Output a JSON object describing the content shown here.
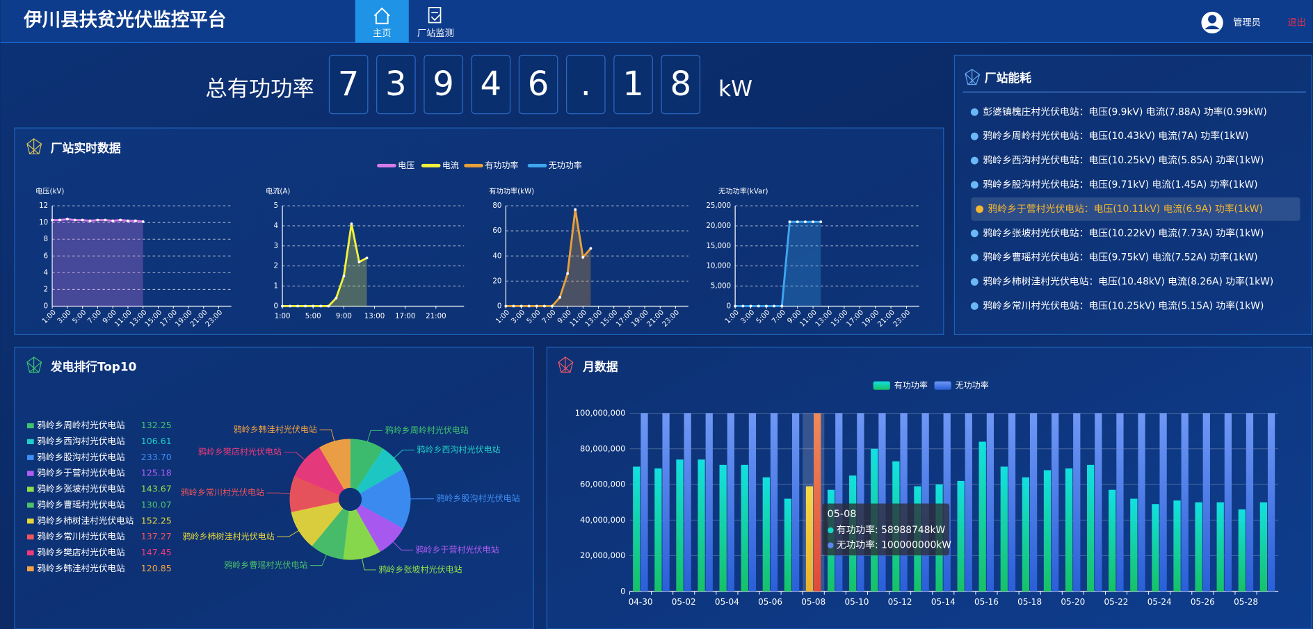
{
  "header": {
    "title": "伊川县扶贫光伏监控平台",
    "nav": [
      "主页",
      "厂站监测"
    ],
    "user": "管理员",
    "logout": "退出"
  },
  "total_power": {
    "label": "总有功功率",
    "digits": [
      "7",
      "3",
      "9",
      "4",
      "6",
      ".",
      "1",
      "8"
    ],
    "unit": "kW"
  },
  "realtime": {
    "title": "厂站实时数据"
  },
  "energy": {
    "title": "厂站能耗",
    "active": 4,
    "items": [
      "彭婆镇槐庄村光伏电站：电压(9.9kV) 电流(7.88A) 功率(0.99kW)",
      "鸦岭乡周岭村光伏电站：电压(10.43kV) 电流(7A) 功率(1kW)",
      "鸦岭乡西沟村光伏电站：电压(10.25kV) 电流(5.85A) 功率(1kW)",
      "鸦岭乡股沟村光伏电站：电压(9.71kV) 电流(1.45A) 功率(1kW)",
      "鸦岭乡于营村光伏电站：电压(10.11kV) 电流(6.9A) 功率(1kW)",
      "鸦岭乡张坡村光伏电站：电压(10.22kV) 电流(7.73A) 功率(1kW)",
      "鸦岭乡曹瑶村光伏电站：电压(9.75kV) 电流(7.52A) 功率(1kW)",
      "鸦岭乡柿树洼村光伏电站：电压(10.48kV) 电流(8.26A) 功率(1kW)",
      "鸦岭乡常川村光伏电站：电压(10.25kV) 电流(5.15A) 功率(1kW)"
    ]
  },
  "chart_data": [
    {
      "type": "line",
      "ylabel": "电压(kV)",
      "categories": [
        "1:00",
        null,
        "3:00",
        null,
        "5:00",
        null,
        "7:00",
        null,
        "9:00",
        null,
        "11:00",
        null,
        "13:00",
        null,
        "15:00",
        null,
        "17:00",
        null,
        "19:00",
        null,
        "21:00",
        null,
        "23:00",
        null
      ],
      "series": [
        {
          "name": "电压",
          "color": "#d77ce8",
          "values": [
            10.3,
            10.3,
            10.4,
            10.3,
            10.3,
            10.2,
            10.3,
            10.3,
            10.2,
            10.3,
            10.2,
            10.2,
            10.1,
            null,
            null,
            null,
            null,
            null,
            null,
            null,
            null,
            null,
            null,
            null
          ]
        }
      ],
      "ylim": [
        0,
        12
      ],
      "yticks": [
        0,
        2,
        4,
        6,
        8,
        10,
        12
      ],
      "grid": true
    },
    {
      "type": "line",
      "ylabel": "电流(A)",
      "categories": [
        "1:00",
        null,
        null,
        null,
        "5:00",
        null,
        null,
        null,
        "9:00",
        null,
        null,
        null,
        "13:00",
        null,
        null,
        null,
        "17:00",
        null,
        null,
        null,
        "21:00",
        null,
        null,
        null
      ],
      "series": [
        {
          "name": "电流",
          "color": "#f2f23c",
          "values": [
            0,
            0,
            0,
            0,
            0,
            0,
            0,
            0.4,
            1.5,
            4.1,
            2.2,
            2.4,
            null,
            null,
            null,
            null,
            null,
            null,
            null,
            null,
            null,
            null,
            null,
            null
          ]
        }
      ],
      "ylim": [
        0,
        5
      ],
      "yticks": [
        0,
        1,
        2,
        3,
        4,
        5
      ],
      "grid": true
    },
    {
      "type": "line",
      "ylabel": "有功功率(kW)",
      "categories": [
        "1:00",
        null,
        "3:00",
        null,
        "5:00",
        null,
        "7:00",
        null,
        "9:00",
        null,
        "11:00",
        null,
        "13:00",
        null,
        "15:00",
        null,
        "17:00",
        null,
        "19:00",
        null,
        "21:00",
        null,
        "23:00",
        null
      ],
      "series": [
        {
          "name": "有功功率",
          "color": "#e8a13a",
          "values": [
            0,
            0,
            0,
            0,
            0,
            0,
            0,
            7,
            26,
            77,
            39,
            46,
            null,
            null,
            null,
            null,
            null,
            null,
            null,
            null,
            null,
            null,
            null,
            null
          ]
        }
      ],
      "ylim": [
        0,
        80
      ],
      "yticks": [
        0,
        20,
        40,
        60,
        80
      ],
      "grid": true
    },
    {
      "type": "line",
      "ylabel": "无功功率(kVar)",
      "categories": [
        "1:00",
        null,
        "3:00",
        null,
        "5:00",
        null,
        "7:00",
        null,
        "9:00",
        null,
        "11:00",
        null,
        "13:00",
        null,
        "15:00",
        null,
        "17:00",
        null,
        "19:00",
        null,
        "21:00",
        null,
        "23:00",
        null
      ],
      "series": [
        {
          "name": "无功功率",
          "color": "#3ea7f0",
          "values": [
            0,
            0,
            0,
            0,
            0,
            0,
            0,
            21000,
            21000,
            21000,
            21000,
            21000,
            null,
            null,
            null,
            null,
            null,
            null,
            null,
            null,
            null,
            null,
            null,
            null
          ]
        }
      ],
      "ylim": [
        0,
        25000
      ],
      "yticks": [
        0,
        {
          "value": 5000,
          "label": "5,000"
        },
        {
          "value": 10000,
          "label": "10,000"
        },
        {
          "value": 15000,
          "label": "15,000"
        },
        {
          "value": 20000,
          "label": "20,000"
        },
        {
          "value": 25000,
          "label": "25,000"
        }
      ],
      "grid": true
    },
    {
      "type": "pie",
      "title": "发电排行Top10",
      "categories": [
        "鸦岭乡周岭村光伏电站",
        "鸦岭乡西沟村光伏电站",
        "鸦岭乡股沟村光伏电站",
        "鸦岭乡于营村光伏电站",
        "鸦岭乡张坡村光伏电站",
        "鸦岭乡曹瑶村光伏电站",
        "鸦岭乡柿树洼村光伏电站",
        "鸦岭乡常川村光伏电站",
        "鸦岭乡樊店村光伏电站",
        "鸦岭乡韩洼村光伏电站"
      ],
      "values": [
        132.25,
        106.61,
        233.7,
        125.18,
        143.67,
        130.07,
        152.25,
        137.27,
        147.45,
        120.85
      ],
      "value_labels": [
        "132.25",
        "106.61",
        "233.70",
        "125.18",
        "143.67",
        "130.07",
        "152.25",
        "137.27",
        "147.45",
        "120.85"
      ],
      "colors": [
        "#3fc36f",
        "#1fcfc6",
        "#3d8ff5",
        "#b05cf5",
        "#8ee04a",
        "#4cc36a",
        "#e6d63a",
        "#f2545b",
        "#f03a7a",
        "#f5a442"
      ]
    },
    {
      "type": "bar",
      "title": "月数据",
      "categories": [
        "04-30",
        null,
        "05-02",
        null,
        "05-04",
        null,
        "05-06",
        null,
        "05-08",
        null,
        "05-10",
        null,
        "05-12",
        null,
        "05-14",
        null,
        "05-16",
        null,
        "05-18",
        null,
        "05-20",
        null,
        "05-22",
        null,
        "05-24",
        null,
        "05-26",
        null,
        "05-28",
        null
      ],
      "series": [
        {
          "name": "有功功率",
          "color": "#16d6c4",
          "values": [
            70000000,
            69000000,
            74000000,
            74000000,
            71000000,
            71000000,
            64000000,
            52000000,
            58988748,
            57000000,
            65000000,
            80000000,
            73000000,
            59000000,
            60000000,
            62000000,
            84000000,
            70000000,
            64000000,
            68000000,
            69000000,
            71000000,
            57000000,
            52000000,
            49000000,
            51000000,
            50000000,
            50000000,
            46000000,
            50000000
          ]
        },
        {
          "name": "无功功率",
          "color": "#5a86f0",
          "values": [
            100000000,
            100000000,
            100000000,
            100000000,
            100000000,
            100000000,
            100000000,
            100000000,
            100000000,
            100000000,
            100000000,
            100000000,
            100000000,
            100000000,
            100000000,
            100000000,
            100000000,
            100000000,
            100000000,
            100000000,
            100000000,
            100000000,
            100000000,
            100000000,
            100000000,
            100000000,
            100000000,
            100000000,
            100000000,
            100000000
          ]
        }
      ],
      "ylim": [
        0,
        100000000
      ],
      "yticks": [
        0,
        {
          "value": 20000000,
          "label": "20,000,000"
        },
        {
          "value": 40000000,
          "label": "40,000,000"
        },
        {
          "value": 60000000,
          "label": "60,000,000"
        },
        {
          "value": 80000000,
          "label": "80,000,000"
        },
        {
          "value": 100000000,
          "label": "100,000,000"
        }
      ],
      "grid": true,
      "tooltip": {
        "title": "05-08",
        "lines": [
          "有功功率: 58988748kW",
          "无功功率: 100000000kW"
        ]
      }
    }
  ]
}
